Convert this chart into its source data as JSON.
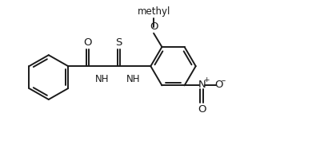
{
  "bg_color": "#ffffff",
  "line_color": "#1a1a1a",
  "line_width": 1.4,
  "font_size": 8.5,
  "figsize": [
    3.95,
    1.86
  ],
  "dpi": 100,
  "xlim": [
    0,
    9.5
  ],
  "ylim": [
    0,
    4.5
  ]
}
